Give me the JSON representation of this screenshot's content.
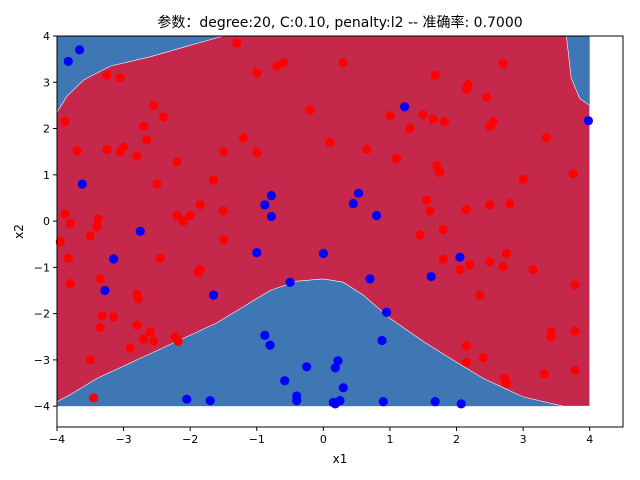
{
  "chart_data": {
    "type": "scatter",
    "title": "参数：degree:20, C:0.10, penalty:l2 -- 准确率: 0.7000",
    "xlabel": "x1",
    "ylabel": "x2",
    "xlim": [
      -4,
      4.5
    ],
    "ylim": [
      -4.45,
      4
    ],
    "xticks": [
      -4,
      -3,
      -2,
      -1,
      0,
      1,
      2,
      3,
      4
    ],
    "yticks": [
      -4,
      -3,
      -2,
      -1,
      0,
      1,
      2,
      3,
      4
    ],
    "grid": false,
    "legend": "none",
    "colors": {
      "class_0_region": "#3f76b4",
      "class_1_region": "#c5284a",
      "class_0_points": "#0000ff",
      "class_1_points": "#ff0000"
    },
    "decision_regions": [
      {
        "class": 1,
        "fill": "#c5284a",
        "boundary": [
          [
            -4,
            2.35
          ],
          [
            -3.85,
            2.7
          ],
          [
            -3.6,
            3.05
          ],
          [
            -3.2,
            3.35
          ],
          [
            -2.6,
            3.55
          ],
          [
            -2.0,
            3.8
          ],
          [
            -1.5,
            4.0
          ],
          [
            3.65,
            4.0
          ],
          [
            3.72,
            3.1
          ],
          [
            3.85,
            2.65
          ],
          [
            4,
            2.5
          ],
          [
            4,
            -4
          ],
          [
            3.6,
            -4
          ],
          [
            3.0,
            -3.8
          ],
          [
            2.4,
            -3.4
          ],
          [
            2.0,
            -3.05
          ],
          [
            1.5,
            -2.6
          ],
          [
            1.0,
            -2.1
          ],
          [
            0.6,
            -1.6
          ],
          [
            0.3,
            -1.32
          ],
          [
            0.0,
            -1.25
          ],
          [
            -0.4,
            -1.3
          ],
          [
            -0.8,
            -1.5
          ],
          [
            -1.2,
            -1.85
          ],
          [
            -1.6,
            -2.2
          ],
          [
            -2.2,
            -2.6
          ],
          [
            -2.8,
            -3.0
          ],
          [
            -3.4,
            -3.4
          ],
          [
            -3.8,
            -3.75
          ],
          [
            -4,
            -3.9
          ]
        ]
      }
    ],
    "series": [
      {
        "class": 1,
        "color": "#ff0000",
        "points": [
          [
            -3.88,
            2.15
          ],
          [
            -3.7,
            1.52
          ],
          [
            -3.88,
            0.15
          ],
          [
            -3.8,
            -0.05
          ],
          [
            -3.95,
            -0.45
          ],
          [
            -3.83,
            -0.8
          ],
          [
            -3.8,
            -1.35
          ],
          [
            -3.5,
            -0.32
          ],
          [
            -3.4,
            -0.12
          ],
          [
            -3.38,
            0.05
          ],
          [
            -3.35,
            -1.25
          ],
          [
            -3.32,
            -2.05
          ],
          [
            -3.35,
            -2.3
          ],
          [
            -3.15,
            -2.07
          ],
          [
            -3.5,
            -3.0
          ],
          [
            -3.45,
            -3.82
          ],
          [
            -3.25,
            3.15
          ],
          [
            -3.05,
            3.1
          ],
          [
            -3.25,
            1.55
          ],
          [
            -3.05,
            1.5
          ],
          [
            -3.0,
            1.6
          ],
          [
            -2.8,
            1.4
          ],
          [
            -2.7,
            2.05
          ],
          [
            -2.55,
            2.5
          ],
          [
            -2.65,
            1.75
          ],
          [
            -2.4,
            2.25
          ],
          [
            -2.5,
            0.8
          ],
          [
            -2.45,
            -0.8
          ],
          [
            -2.8,
            -1.58
          ],
          [
            -2.78,
            -1.68
          ],
          [
            -2.8,
            -2.25
          ],
          [
            -2.7,
            -2.55
          ],
          [
            -2.6,
            -2.4
          ],
          [
            -2.55,
            -2.6
          ],
          [
            -2.9,
            -2.75
          ],
          [
            -2.2,
            1.28
          ],
          [
            -2.2,
            0.12
          ],
          [
            -2.1,
            0.0
          ],
          [
            -2.0,
            0.12
          ],
          [
            -1.85,
            0.35
          ],
          [
            -1.85,
            -1.05
          ],
          [
            -1.88,
            -1.1
          ],
          [
            -2.22,
            -2.5
          ],
          [
            -2.18,
            -2.6
          ],
          [
            -1.65,
            0.88
          ],
          [
            -1.5,
            0.22
          ],
          [
            -1.5,
            -0.4
          ],
          [
            -1.5,
            1.5
          ],
          [
            -1.3,
            3.85
          ],
          [
            -1.2,
            1.8
          ],
          [
            -1.0,
            3.2
          ],
          [
            -1.0,
            1.48
          ],
          [
            -0.7,
            3.35
          ],
          [
            -0.6,
            3.42
          ],
          [
            -0.2,
            2.4
          ],
          [
            0.1,
            1.7
          ],
          [
            0.3,
            3.42
          ],
          [
            0.65,
            1.55
          ],
          [
            1.0,
            2.28
          ],
          [
            1.1,
            1.35
          ],
          [
            1.3,
            2.0
          ],
          [
            1.5,
            2.3
          ],
          [
            1.45,
            -0.3
          ],
          [
            1.55,
            0.45
          ],
          [
            1.6,
            0.22
          ],
          [
            1.65,
            2.2
          ],
          [
            1.68,
            3.15
          ],
          [
            1.7,
            1.2
          ],
          [
            1.75,
            1.05
          ],
          [
            1.82,
            2.15
          ],
          [
            1.8,
            -0.18
          ],
          [
            1.8,
            -0.82
          ],
          [
            2.05,
            -1.05
          ],
          [
            2.15,
            2.85
          ],
          [
            2.17,
            2.95
          ],
          [
            2.15,
            0.25
          ],
          [
            2.2,
            -0.95
          ],
          [
            2.15,
            -2.7
          ],
          [
            2.15,
            -3.05
          ],
          [
            2.45,
            2.68
          ],
          [
            2.5,
            2.05
          ],
          [
            2.55,
            2.15
          ],
          [
            2.5,
            0.35
          ],
          [
            2.5,
            -0.88
          ],
          [
            2.35,
            -1.6
          ],
          [
            2.4,
            -2.95
          ],
          [
            2.7,
            3.4
          ],
          [
            2.7,
            -0.98
          ],
          [
            2.75,
            -0.7
          ],
          [
            2.8,
            0.38
          ],
          [
            2.72,
            -3.4
          ],
          [
            2.75,
            -3.5
          ],
          [
            3.0,
            0.9
          ],
          [
            3.15,
            -1.05
          ],
          [
            3.35,
            1.8
          ],
          [
            3.42,
            -2.4
          ],
          [
            3.42,
            -2.5
          ],
          [
            3.32,
            -3.3
          ],
          [
            3.75,
            1.02
          ],
          [
            3.78,
            -1.38
          ],
          [
            3.78,
            -2.38
          ],
          [
            3.78,
            -3.22
          ]
        ]
      },
      {
        "class": 0,
        "color": "#0000ff",
        "points": [
          [
            -3.66,
            3.7
          ],
          [
            -3.83,
            3.45
          ],
          [
            -3.62,
            0.8
          ],
          [
            -3.15,
            -0.82
          ],
          [
            -2.75,
            -0.22
          ],
          [
            -3.28,
            -1.5
          ],
          [
            -1.65,
            -1.6
          ],
          [
            -2.05,
            -3.85
          ],
          [
            -1.7,
            -3.88
          ],
          [
            -1.0,
            -0.68
          ],
          [
            -0.88,
            0.35
          ],
          [
            -0.78,
            0.55
          ],
          [
            -0.78,
            0.1
          ],
          [
            -0.5,
            -1.32
          ],
          [
            -0.88,
            -2.47
          ],
          [
            -0.8,
            -2.68
          ],
          [
            -0.58,
            -3.45
          ],
          [
            -0.4,
            -3.78
          ],
          [
            -0.4,
            -3.88
          ],
          [
            -0.25,
            -3.15
          ],
          [
            0.0,
            -0.7
          ],
          [
            0.18,
            -3.17
          ],
          [
            0.22,
            -3.02
          ],
          [
            0.3,
            -3.6
          ],
          [
            0.25,
            -3.88
          ],
          [
            0.15,
            -3.92
          ],
          [
            0.18,
            -3.95
          ],
          [
            0.45,
            0.38
          ],
          [
            0.53,
            0.6
          ],
          [
            0.7,
            -1.25
          ],
          [
            0.8,
            0.12
          ],
          [
            0.95,
            -1.97
          ],
          [
            0.88,
            -2.58
          ],
          [
            0.9,
            -3.9
          ],
          [
            1.22,
            2.47
          ],
          [
            1.62,
            -1.2
          ],
          [
            1.68,
            -3.9
          ],
          [
            2.05,
            -0.78
          ],
          [
            2.07,
            -3.95
          ],
          [
            3.98,
            2.17
          ]
        ]
      }
    ]
  }
}
